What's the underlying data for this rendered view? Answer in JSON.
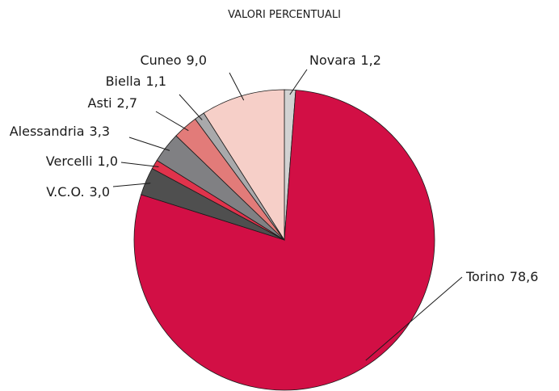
{
  "chart_data": {
    "type": "pie",
    "title": "VALORI PERCENTUALI",
    "categories": [
      "Novara",
      "Torino",
      "V.C.O.",
      "Vercelli",
      "Alessandria",
      "Asti",
      "Biella",
      "Cuneo"
    ],
    "values": [
      1.2,
      78.6,
      3.0,
      1.0,
      3.3,
      2.7,
      1.1,
      9.0
    ],
    "value_labels": [
      "1,2",
      "78,6",
      "3,0",
      "1,0",
      "3,3",
      "2,7",
      "1,1",
      "9,0"
    ],
    "colors": [
      "#d2d2d2",
      "#d20f45",
      "#4f4f4f",
      "#e0334c",
      "#808083",
      "#e27b79",
      "#a9a9ab",
      "#f6cfc8"
    ]
  }
}
